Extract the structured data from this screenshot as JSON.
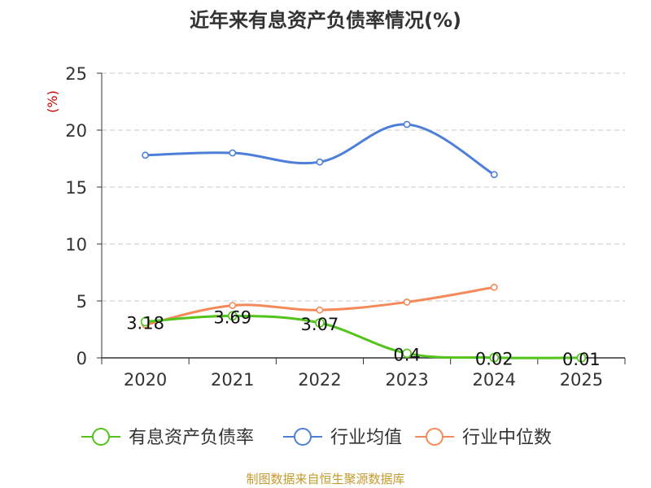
{
  "chart_data": {
    "type": "line",
    "title": "近年来有息资产负债率情况(%)",
    "ylabel": "(%)",
    "source": "制图数据来自恒生聚源数据库",
    "categories": [
      "2020",
      "2021",
      "2022",
      "2023",
      "2024",
      "2025"
    ],
    "ylim": [
      0,
      25
    ],
    "yticks": [
      0,
      5,
      10,
      15,
      20,
      25
    ],
    "grid": true,
    "legend_position": "bottom",
    "series": [
      {
        "name": "有息资产负债率",
        "color": "#52c41a",
        "values": [
          3.18,
          3.69,
          3.07,
          0.4,
          0.02,
          0.01
        ],
        "labels": [
          "3.18",
          "3.69",
          "3.07",
          "0.4",
          "0.02",
          "0.01"
        ]
      },
      {
        "name": "行业均值",
        "color": "#4e7fd8",
        "values": [
          17.8,
          18.0,
          17.2,
          20.5,
          16.1,
          null
        ]
      },
      {
        "name": "行业中位数",
        "color": "#f5895a",
        "values": [
          2.9,
          4.6,
          4.2,
          4.9,
          6.2,
          null
        ]
      }
    ]
  }
}
